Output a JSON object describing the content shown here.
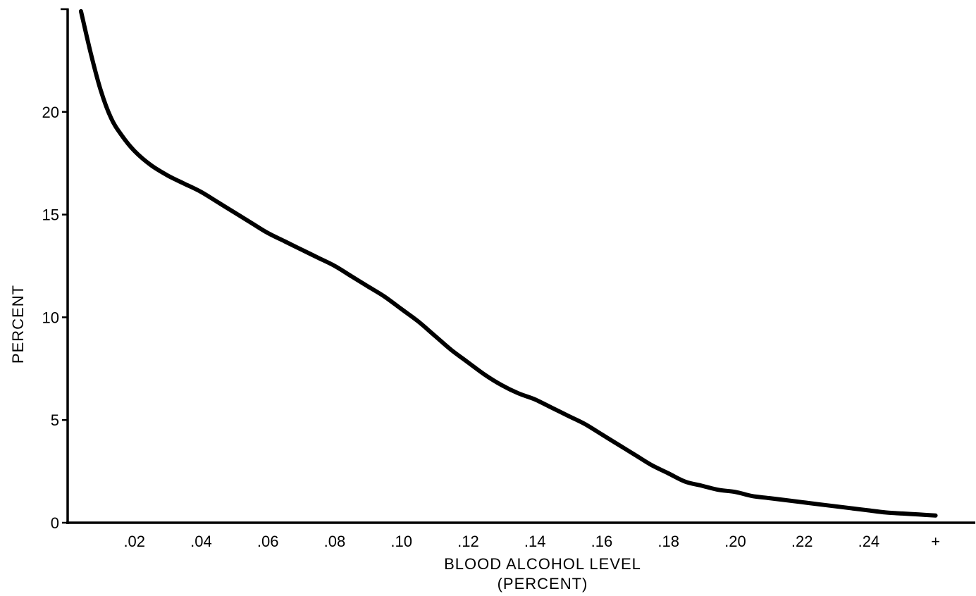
{
  "chart_data": {
    "type": "line",
    "title": "",
    "xlabel": "BLOOD ALCOHOL LEVEL",
    "xlabel_line2": "(PERCENT)",
    "ylabel": "PERCENT",
    "xlim": [
      0,
      0.27
    ],
    "ylim": [
      0,
      25
    ],
    "x_ticks": [
      0.02,
      0.04,
      0.06,
      0.08,
      0.1,
      0.12,
      0.14,
      0.16,
      0.18,
      0.2,
      0.22,
      0.24,
      0.26
    ],
    "x_tick_labels": [
      ".02",
      ".04",
      ".06",
      ".08",
      ".10",
      ".12",
      ".14",
      ".16",
      ".18",
      ".20",
      ".22",
      ".24",
      "+"
    ],
    "y_ticks": [
      0,
      5,
      10,
      15,
      20
    ],
    "y_tick_labels": [
      "0",
      "5",
      "10",
      "15",
      "20"
    ],
    "grid": false,
    "series": [
      {
        "x": [
          0.004,
          0.007,
          0.01,
          0.013,
          0.016,
          0.02,
          0.025,
          0.03,
          0.035,
          0.04,
          0.045,
          0.05,
          0.055,
          0.06,
          0.065,
          0.07,
          0.075,
          0.08,
          0.085,
          0.09,
          0.095,
          0.1,
          0.105,
          0.11,
          0.115,
          0.12,
          0.125,
          0.13,
          0.135,
          0.14,
          0.145,
          0.15,
          0.155,
          0.16,
          0.165,
          0.17,
          0.175,
          0.18,
          0.185,
          0.19,
          0.195,
          0.2,
          0.205,
          0.21,
          0.215,
          0.22,
          0.225,
          0.23,
          0.235,
          0.24,
          0.245,
          0.25,
          0.255,
          0.26
        ],
        "y": [
          24.9,
          22.8,
          21.0,
          19.7,
          18.9,
          18.1,
          17.4,
          16.9,
          16.5,
          16.1,
          15.6,
          15.1,
          14.6,
          14.1,
          13.7,
          13.3,
          12.9,
          12.5,
          12.0,
          11.5,
          11.0,
          10.4,
          9.8,
          9.1,
          8.4,
          7.8,
          7.2,
          6.7,
          6.3,
          6.0,
          5.6,
          5.2,
          4.8,
          4.3,
          3.8,
          3.3,
          2.8,
          2.4,
          2.0,
          1.8,
          1.6,
          1.5,
          1.3,
          1.2,
          1.1,
          1.0,
          0.9,
          0.8,
          0.7,
          0.6,
          0.5,
          0.45,
          0.4,
          0.35
        ]
      }
    ]
  }
}
